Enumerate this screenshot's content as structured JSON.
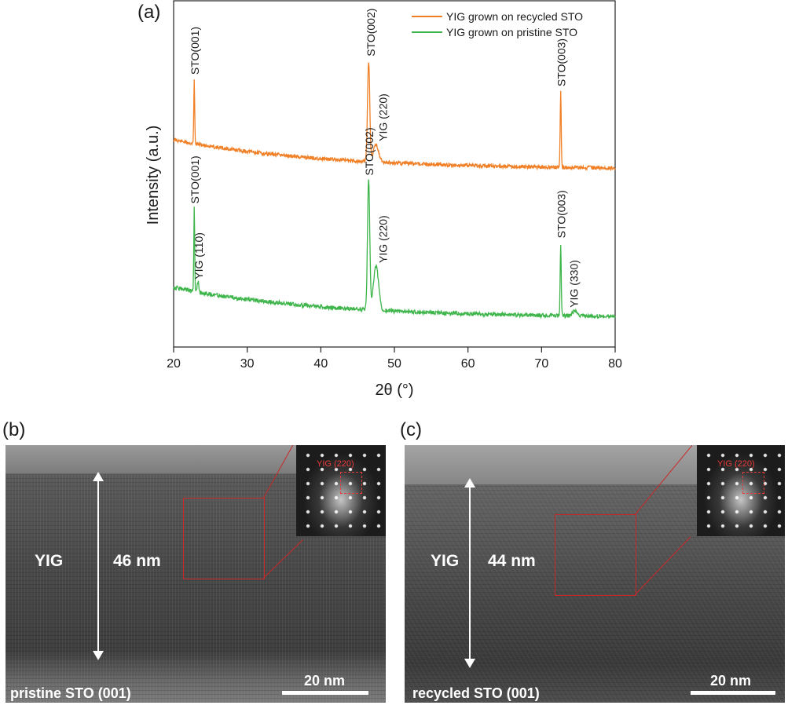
{
  "panel_a_label": "(a)",
  "panel_b_label": "(b)",
  "panel_c_label": "(c)",
  "colors": {
    "recycled": "#F07F25",
    "pristine": "#3DB54A",
    "red": "#C82828"
  },
  "chart_data": {
    "type": "line",
    "xlabel": "2θ (°)",
    "ylabel": "Intensity (a.u.)",
    "xlim": [
      20,
      80
    ],
    "xticks": [
      "20",
      "30",
      "40",
      "50",
      "60",
      "70",
      "80"
    ],
    "legend_position": "top-right",
    "series": [
      {
        "name": "YIG grown on recycled STO",
        "color": "#F07F25",
        "peaks": [
          {
            "x": 22.8,
            "height": 0.62,
            "width": 0.06,
            "label": "STO(001)"
          },
          {
            "x": 46.5,
            "height": 0.97,
            "width": 0.15,
            "label": "STO(002)"
          },
          {
            "x": 47.5,
            "height": 0.17,
            "width": 0.35,
            "label": "YIG (220)"
          },
          {
            "x": 72.6,
            "height": 0.72,
            "width": 0.07,
            "label": "STO(003)"
          }
        ]
      },
      {
        "name": "YIG grown on pristine STO",
        "color": "#3DB54A",
        "peaks": [
          {
            "x": 22.8,
            "height": 0.64,
            "width": 0.06,
            "label": "STO(001)"
          },
          {
            "x": 23.3,
            "height": 0.08,
            "width": 0.12,
            "label": "YIG (110)"
          },
          {
            "x": 46.5,
            "height": 1.0,
            "width": 0.15,
            "label": "STO(002)"
          },
          {
            "x": 47.5,
            "height": 0.34,
            "width": 0.35,
            "label": "YIG (220)"
          },
          {
            "x": 72.6,
            "height": 0.55,
            "width": 0.07,
            "label": "STO(003)"
          },
          {
            "x": 74.5,
            "height": 0.04,
            "width": 0.3,
            "label": "YIG (330)"
          }
        ]
      }
    ]
  },
  "panel_b": {
    "inset_label": "YIG (220)",
    "layer_label": "YIG",
    "thickness": "46 nm",
    "scale_label": "20 nm",
    "substrate_label": "pristine STO (001)"
  },
  "panel_c": {
    "inset_label": "YIG (220)",
    "layer_label": "YIG",
    "thickness": "44 nm",
    "scale_label": "20 nm",
    "substrate_label": "recycled STO (001)"
  }
}
